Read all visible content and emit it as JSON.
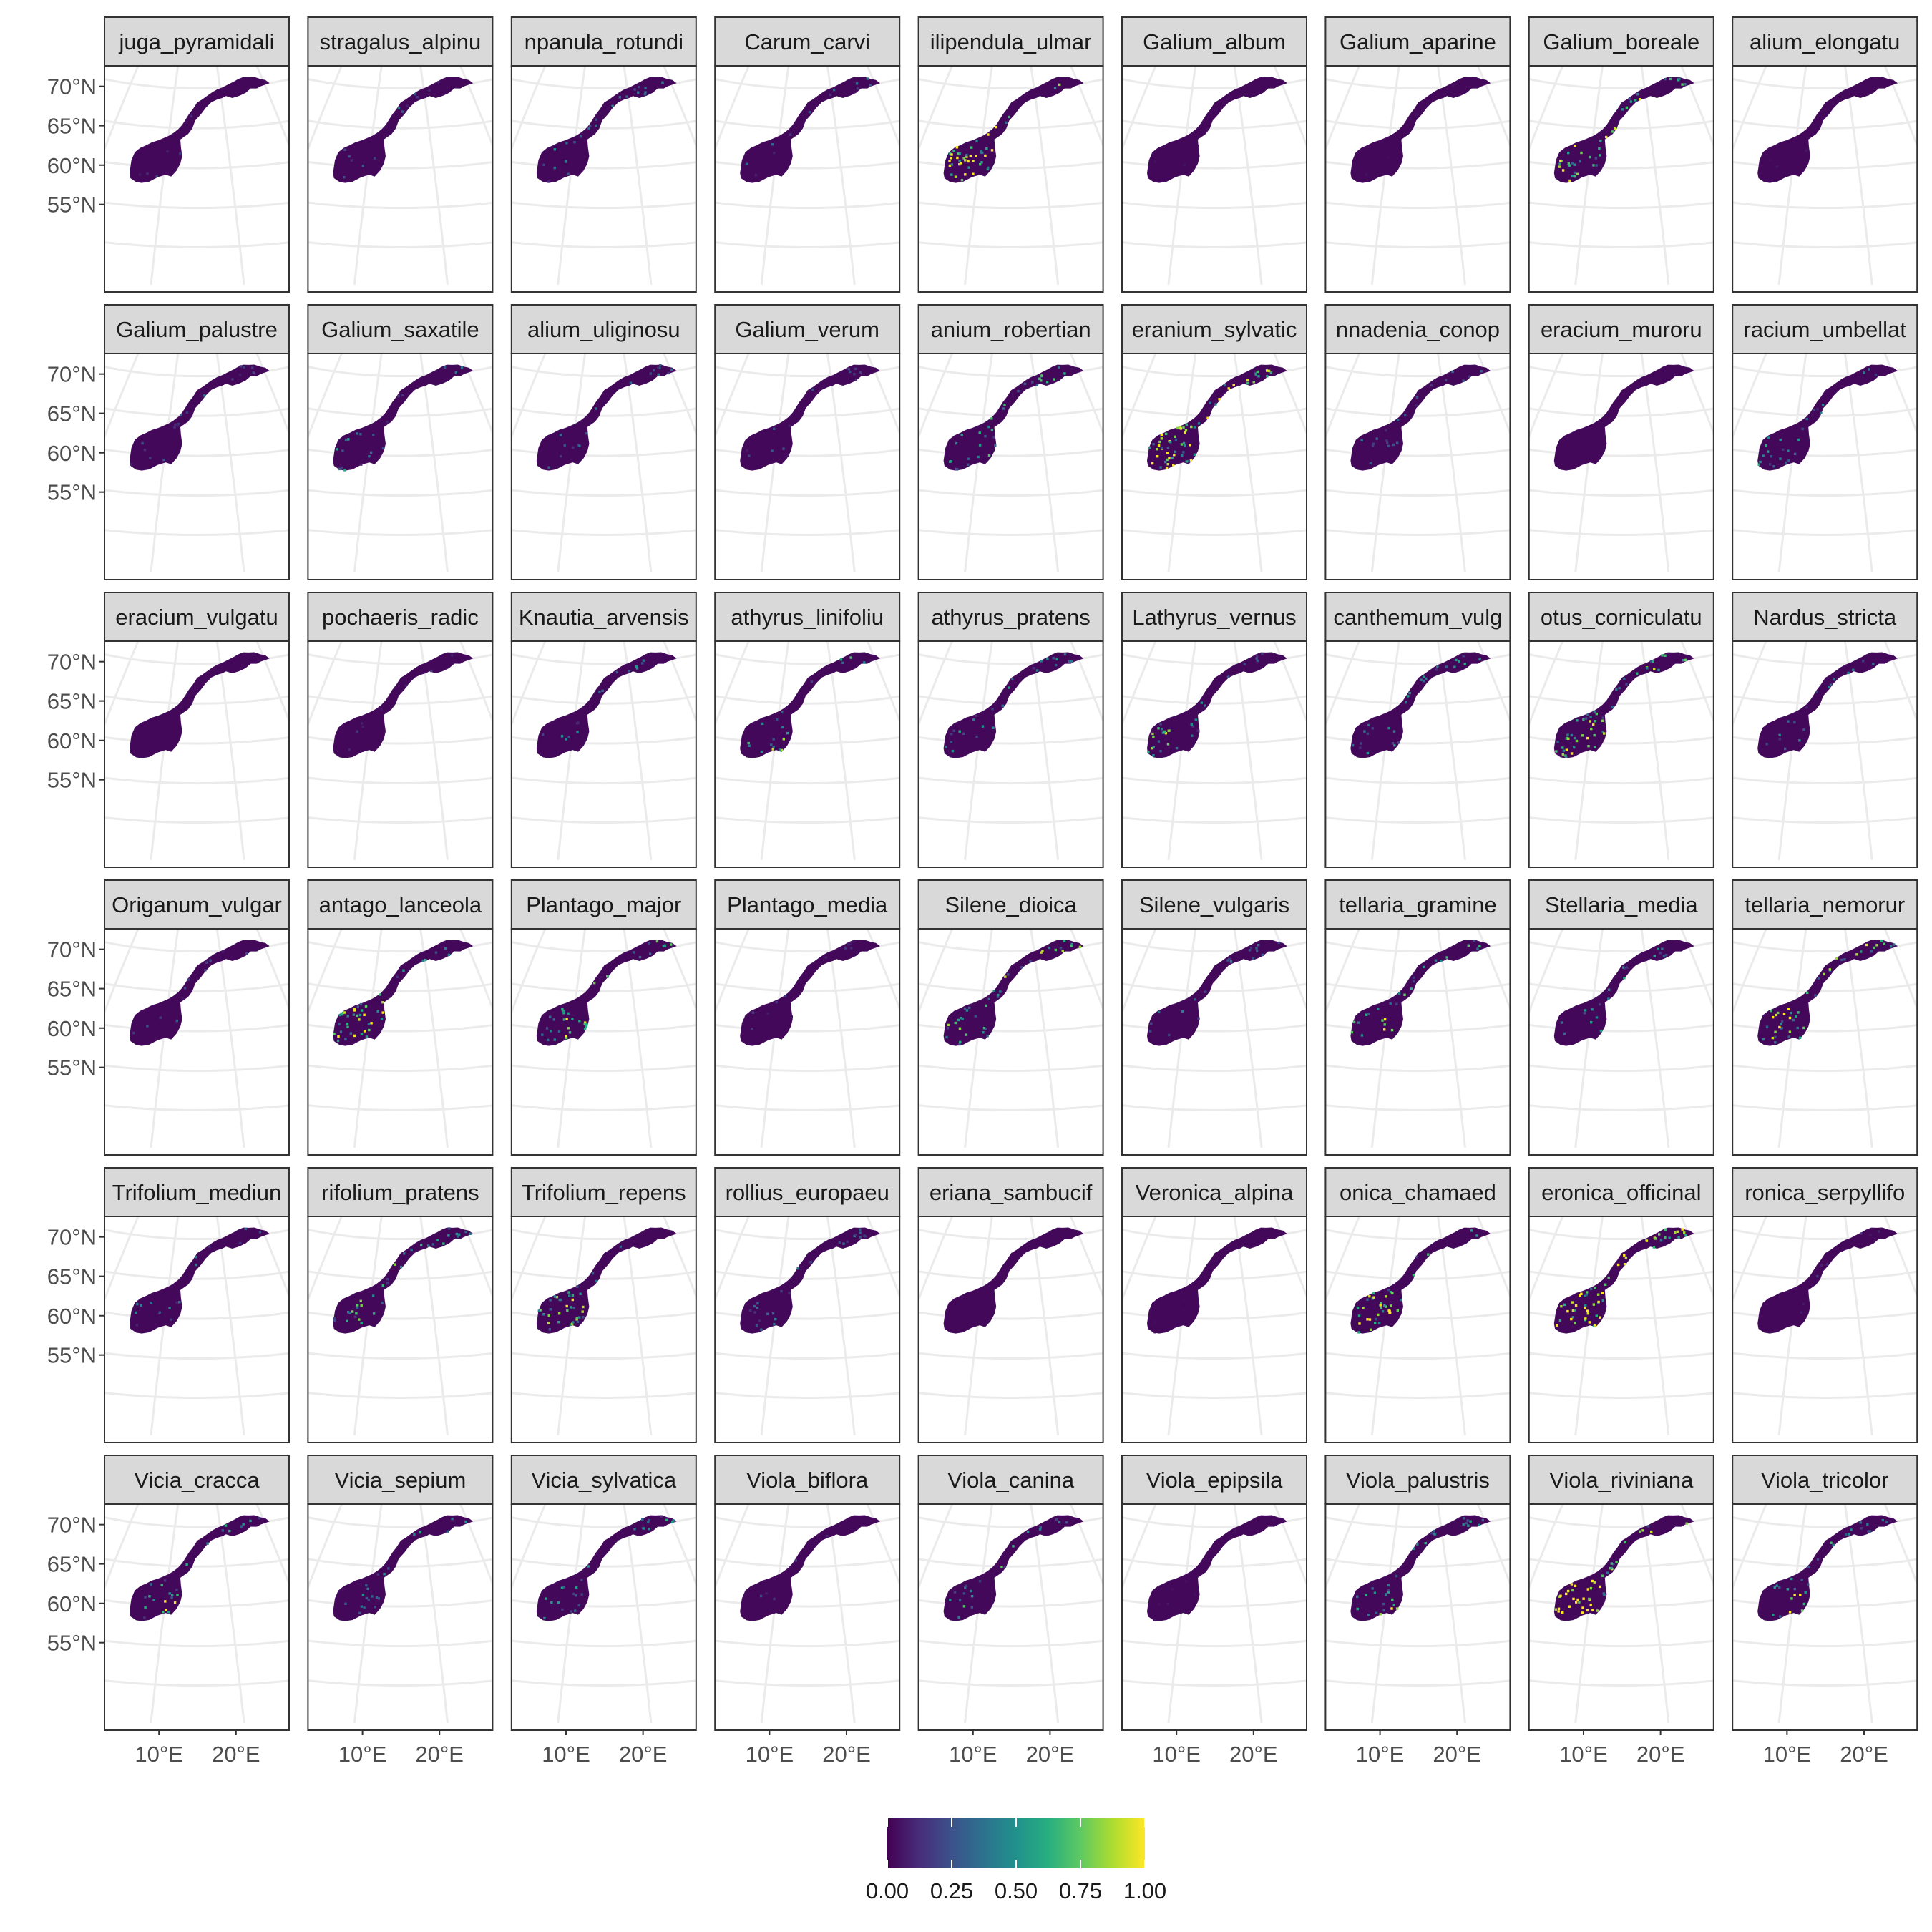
{
  "figure": {
    "facets": [
      {
        "strip": "juga_pyramidali",
        "pattern": "patchy-south",
        "intensity": 0.18
      },
      {
        "strip": "stragalus_alpinu",
        "pattern": "sparse-north",
        "intensity": 0.22
      },
      {
        "strip": "npanula_rotundi",
        "pattern": "scattered",
        "intensity": 0.32
      },
      {
        "strip": "Carum_carvi",
        "pattern": "scattered",
        "intensity": 0.28
      },
      {
        "strip": "ilipendula_ulmar",
        "pattern": "bright-south",
        "intensity": 0.85
      },
      {
        "strip": "Galium_album",
        "pattern": "low",
        "intensity": 0.08
      },
      {
        "strip": "Galium_aparine",
        "pattern": "low",
        "intensity": 0.1
      },
      {
        "strip": "Galium_boreale",
        "pattern": "bright-widespread",
        "intensity": 0.62
      },
      {
        "strip": "alium_elongatu",
        "pattern": "low",
        "intensity": 0.12
      },
      {
        "strip": "Galium_palustre",
        "pattern": "scattered",
        "intensity": 0.25
      },
      {
        "strip": "Galium_saxatile",
        "pattern": "southwest-coast",
        "intensity": 0.3
      },
      {
        "strip": "alium_uliginosu",
        "pattern": "scattered",
        "intensity": 0.3
      },
      {
        "strip": "Galium_verum",
        "pattern": "sparse",
        "intensity": 0.2
      },
      {
        "strip": "anium_robertian",
        "pattern": "coastal-wide",
        "intensity": 0.45
      },
      {
        "strip": "eranium_sylvatic",
        "pattern": "bright-widespread",
        "intensity": 0.7
      },
      {
        "strip": "nnadenia_conop",
        "pattern": "scattered",
        "intensity": 0.26
      },
      {
        "strip": "eracium_muroru",
        "pattern": "low",
        "intensity": 0.05
      },
      {
        "strip": "racium_umbellat",
        "pattern": "patchy-south",
        "intensity": 0.4
      },
      {
        "strip": "eracium_vulgatu",
        "pattern": "low",
        "intensity": 0.06
      },
      {
        "strip": "pochaeris_radic",
        "pattern": "sparse",
        "intensity": 0.14
      },
      {
        "strip": "Knautia_arvensis",
        "pattern": "scattered",
        "intensity": 0.35
      },
      {
        "strip": "athyrus_linifoliu",
        "pattern": "southeast",
        "intensity": 0.55
      },
      {
        "strip": "athyrus_pratens",
        "pattern": "scattered",
        "intensity": 0.38
      },
      {
        "strip": "Lathyrus_vernus",
        "pattern": "southwest-coast",
        "intensity": 0.45
      },
      {
        "strip": "canthemum_vulg",
        "pattern": "scattered",
        "intensity": 0.42
      },
      {
        "strip": "otus_corniculatu",
        "pattern": "bright-widespread",
        "intensity": 0.6
      },
      {
        "strip": "Nardus_stricta",
        "pattern": "scattered",
        "intensity": 0.3
      },
      {
        "strip": "Origanum_vulgar",
        "pattern": "sparse",
        "intensity": 0.2
      },
      {
        "strip": "antago_lanceola",
        "pattern": "bright-south",
        "intensity": 0.72
      },
      {
        "strip": "Plantago_major",
        "pattern": "southeast",
        "intensity": 0.65
      },
      {
        "strip": "Plantago_media",
        "pattern": "sparse",
        "intensity": 0.15
      },
      {
        "strip": "Silene_dioica",
        "pattern": "coastal-wide",
        "intensity": 0.55
      },
      {
        "strip": "Silene_vulgaris",
        "pattern": "scattered",
        "intensity": 0.3
      },
      {
        "strip": "tellaria_gramine",
        "pattern": "southeast",
        "intensity": 0.6
      },
      {
        "strip": "Stellaria_media",
        "pattern": "scattered",
        "intensity": 0.4
      },
      {
        "strip": "tellaria_nemorur",
        "pattern": "bright-widespread",
        "intensity": 0.62
      },
      {
        "strip": "Trifolium_mediun",
        "pattern": "scattered",
        "intensity": 0.3
      },
      {
        "strip": "rifolium_pratens",
        "pattern": "coastal-wide",
        "intensity": 0.5
      },
      {
        "strip": "Trifolium_repens",
        "pattern": "bright-south",
        "intensity": 0.6
      },
      {
        "strip": "rollius_europaeu",
        "pattern": "scattered",
        "intensity": 0.3
      },
      {
        "strip": "eriana_sambucif",
        "pattern": "low",
        "intensity": 0.04
      },
      {
        "strip": "Veronica_alpina",
        "pattern": "low",
        "intensity": 0.05
      },
      {
        "strip": "onica_chamaed",
        "pattern": "bright-south",
        "intensity": 0.72
      },
      {
        "strip": "eronica_officinal",
        "pattern": "bright-widespread",
        "intensity": 0.8
      },
      {
        "strip": "ronica_serpyllifo",
        "pattern": "sparse",
        "intensity": 0.12
      },
      {
        "strip": "Vicia_cracca",
        "pattern": "southeast",
        "intensity": 0.55
      },
      {
        "strip": "Vicia_sepium",
        "pattern": "southeast",
        "intensity": 0.45
      },
      {
        "strip": "Vicia_sylvatica",
        "pattern": "scattered",
        "intensity": 0.42
      },
      {
        "strip": "Viola_biflora",
        "pattern": "sparse",
        "intensity": 0.18
      },
      {
        "strip": "Viola_canina",
        "pattern": "coastal-wide",
        "intensity": 0.48
      },
      {
        "strip": "Viola_epipsila",
        "pattern": "low",
        "intensity": 0.1
      },
      {
        "strip": "Viola_palustris",
        "pattern": "southeast",
        "intensity": 0.52
      },
      {
        "strip": "Viola_riviniana",
        "pattern": "bright-south",
        "intensity": 0.9
      },
      {
        "strip": "Viola_tricolor",
        "pattern": "southeast",
        "intensity": 0.6
      }
    ],
    "y_ticks": [
      "55°N",
      "60°N",
      "65°N",
      "70°N"
    ],
    "x_ticks": [
      "10°E",
      "20°E"
    ],
    "legend": {
      "breaks": [
        0,
        0.25,
        0.5,
        0.75,
        1
      ],
      "labels": [
        "0.00",
        "0.25",
        "0.50",
        "0.75",
        "1.00"
      ],
      "colormap": "viridis",
      "low_color": "#440154",
      "high_color": "#fde725"
    },
    "colors": {
      "panel_border": "#333333",
      "strip_fill": "#d9d9d9",
      "graticule": "#ebebeb"
    }
  }
}
